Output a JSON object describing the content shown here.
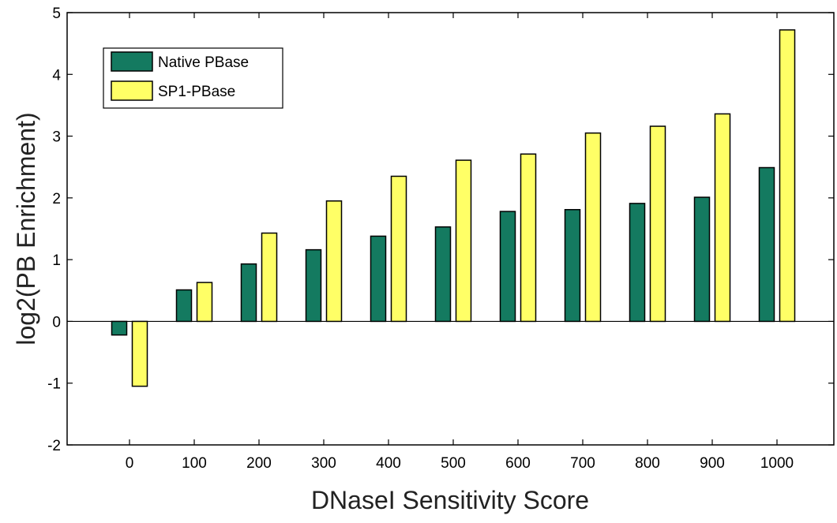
{
  "chart_data": {
    "type": "bar",
    "xlabel": "DNaseI Sensitivity Score",
    "ylabel": "log2(PB Enrichment)",
    "categories": [
      "0",
      "100",
      "200",
      "300",
      "400",
      "500",
      "600",
      "700",
      "800",
      "900",
      "1000"
    ],
    "yticks": [
      "-2",
      "-1",
      "0",
      "1",
      "2",
      "3",
      "4",
      "5"
    ],
    "ylim": [
      -2,
      5
    ],
    "grid": false,
    "legend_position": "top-left",
    "series": [
      {
        "name": "Native PBase",
        "color": "#147a60",
        "values": [
          -0.22,
          0.51,
          0.93,
          1.16,
          1.38,
          1.53,
          1.78,
          1.81,
          1.91,
          2.01,
          2.49
        ]
      },
      {
        "name": "SP1-PBase",
        "color": "#ffff66",
        "values": [
          -1.05,
          0.63,
          1.43,
          1.95,
          2.35,
          2.61,
          2.71,
          3.05,
          3.16,
          3.36,
          4.72
        ]
      }
    ]
  }
}
